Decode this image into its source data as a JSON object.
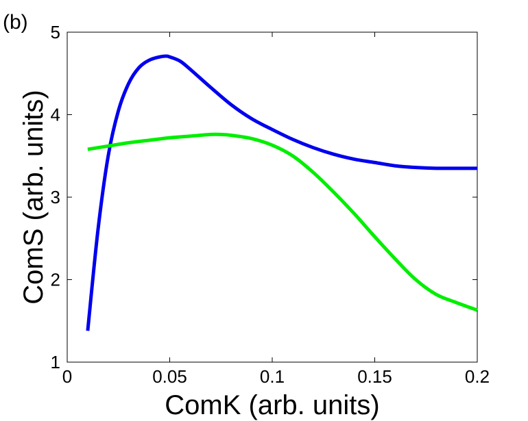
{
  "panel_label": "(b)",
  "chart_data": {
    "type": "line",
    "title": "",
    "xlabel": "ComK (arb. units)",
    "ylabel": "ComS (arb. units)",
    "xlim": [
      0,
      0.2
    ],
    "ylim": [
      1,
      5
    ],
    "xticks": [
      "0",
      "0.05",
      "0.1",
      "0.15",
      "0.2"
    ],
    "yticks": [
      "1",
      "2",
      "3",
      "4",
      "5"
    ],
    "grid": false,
    "legend": "none",
    "series": [
      {
        "color": "#0000ee",
        "x": [
          0.01,
          0.015,
          0.02,
          0.025,
          0.03,
          0.035,
          0.04,
          0.045,
          0.048,
          0.05,
          0.055,
          0.06,
          0.07,
          0.08,
          0.09,
          0.1,
          0.11,
          0.12,
          0.13,
          0.14,
          0.15,
          0.16,
          0.17,
          0.18,
          0.19,
          0.2
        ],
        "y": [
          1.38,
          2.6,
          3.5,
          4.05,
          4.38,
          4.57,
          4.66,
          4.7,
          4.71,
          4.7,
          4.65,
          4.55,
          4.33,
          4.12,
          3.95,
          3.82,
          3.7,
          3.6,
          3.52,
          3.46,
          3.42,
          3.38,
          3.36,
          3.35,
          3.35,
          3.35
        ]
      },
      {
        "color": "#00ee00",
        "x": [
          0.01,
          0.02,
          0.03,
          0.04,
          0.05,
          0.06,
          0.07,
          0.075,
          0.08,
          0.09,
          0.1,
          0.11,
          0.12,
          0.13,
          0.14,
          0.15,
          0.16,
          0.17,
          0.18,
          0.19,
          0.2
        ],
        "y": [
          3.58,
          3.62,
          3.66,
          3.69,
          3.72,
          3.74,
          3.76,
          3.76,
          3.75,
          3.71,
          3.63,
          3.5,
          3.3,
          3.06,
          2.8,
          2.52,
          2.25,
          2.0,
          1.82,
          1.72,
          1.63
        ]
      }
    ]
  }
}
